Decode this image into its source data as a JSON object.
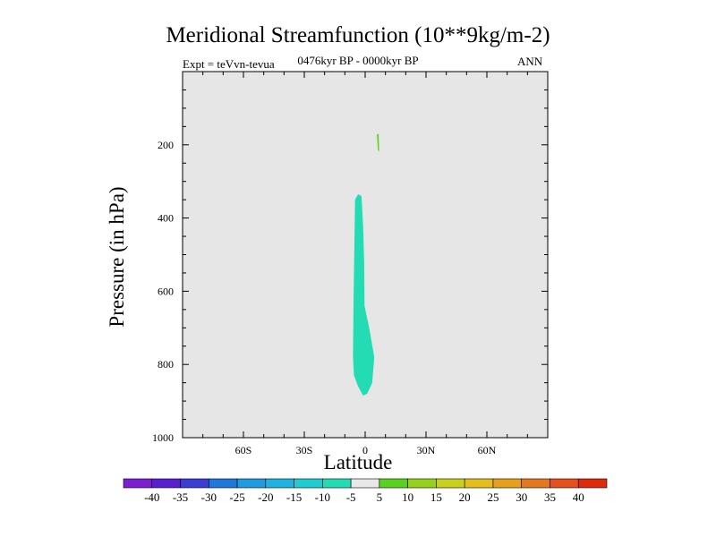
{
  "chart_data": {
    "type": "contour",
    "title": "Meridional Streamfunction (10**9kg/m-2)",
    "subtitle": "0476kyr BP - 0000kyr BP",
    "experiment": "Expt = teVvn-tevua",
    "season": "ANN",
    "xlabel": "Latitude",
    "ylabel": "Pressure (in hPa)",
    "xlim": [
      -90,
      90
    ],
    "ylim": [
      1000,
      0
    ],
    "x_ticks": [
      {
        "value": -60,
        "label": "60S"
      },
      {
        "value": -30,
        "label": "30S"
      },
      {
        "value": 0,
        "label": "0"
      },
      {
        "value": 30,
        "label": "30N"
      },
      {
        "value": 60,
        "label": "60N"
      }
    ],
    "y_ticks": [
      {
        "value": 200,
        "label": "200"
      },
      {
        "value": 400,
        "label": "400"
      },
      {
        "value": 600,
        "label": "600"
      },
      {
        "value": 800,
        "label": "800"
      },
      {
        "value": 1000,
        "label": "1000"
      }
    ],
    "background_color": "#e6e6e6",
    "regions": [
      {
        "name": "-10 to -5",
        "color": "#24dcb4",
        "outline": [
          [
            -3.5,
            335
          ],
          [
            -1.8,
            340
          ],
          [
            -1.0,
            420
          ],
          [
            -0.5,
            520
          ],
          [
            -0.3,
            640
          ],
          [
            2.0,
            700
          ],
          [
            4.5,
            780
          ],
          [
            3.5,
            850
          ],
          [
            1.0,
            880
          ],
          [
            -1.0,
            885
          ],
          [
            -3.5,
            860
          ],
          [
            -5.5,
            830
          ],
          [
            -6.0,
            780
          ],
          [
            -5.8,
            650
          ],
          [
            -5.4,
            500
          ],
          [
            -5.0,
            350
          ]
        ]
      },
      {
        "name": "5 to 10",
        "color": "#58d21c",
        "outline": [
          [
            5.8,
            172
          ],
          [
            6.6,
            170
          ],
          [
            6.8,
            200
          ],
          [
            6.9,
            218
          ],
          [
            6.3,
            215
          ],
          [
            6.0,
            190
          ]
        ]
      }
    ],
    "colorbar": {
      "labels": [
        "-40",
        "-35",
        "-30",
        "-25",
        "-20",
        "-15",
        "-10",
        "-5",
        "5",
        "10",
        "15",
        "20",
        "25",
        "30",
        "35",
        "40"
      ],
      "colors": [
        "#7d1ed2",
        "#5a1ed2",
        "#3c3cd7",
        "#1e78dc",
        "#1e9be1",
        "#1eb4e1",
        "#1ecdd2",
        "#24dcb4",
        "#e8e8e8",
        "#58d21c",
        "#96d21c",
        "#c8d21c",
        "#e6be1c",
        "#e6a01c",
        "#e6781c",
        "#e6501c",
        "#e0280c"
      ]
    }
  }
}
